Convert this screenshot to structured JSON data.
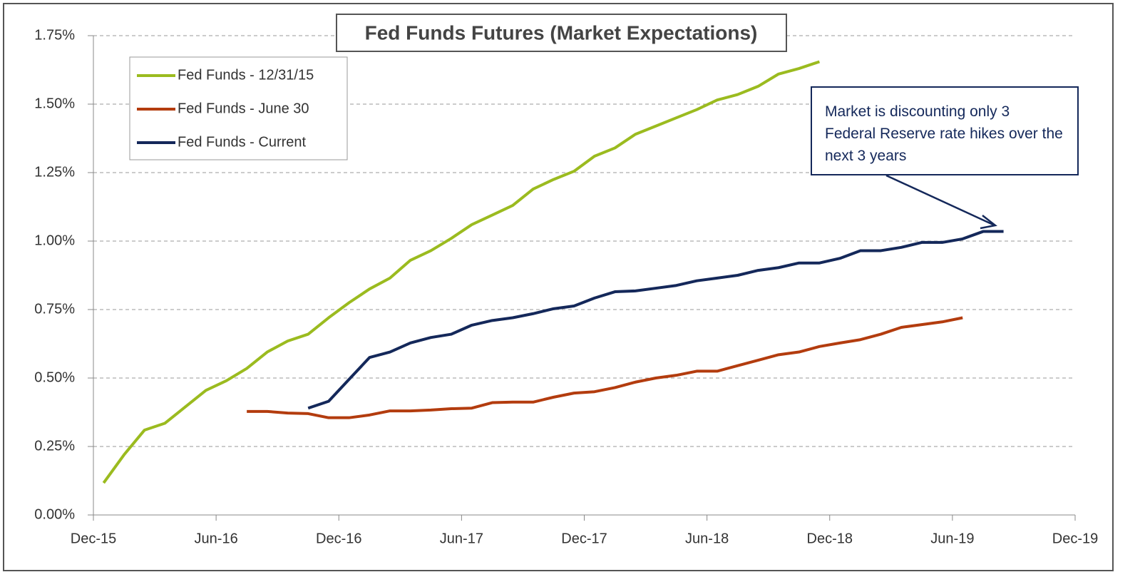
{
  "chart_data": {
    "type": "line",
    "title": "Fed Funds Futures (Market Expectations)",
    "annotation": "Market is discounting only 3 Federal Reserve rate hikes over the next 3 years",
    "xlim": [
      "Dec-15",
      "Dec-19"
    ],
    "xticks": [
      "Dec-15",
      "Jun-16",
      "Dec-16",
      "Jun-17",
      "Dec-17",
      "Jun-18",
      "Dec-18",
      "Jun-19",
      "Dec-19"
    ],
    "ylim": [
      0,
      1.75
    ],
    "yticks": [
      {
        "value": 0,
        "label": "0.00%"
      },
      {
        "value": 0.25,
        "label": "0.25%"
      },
      {
        "value": 0.5,
        "label": "0.50%"
      },
      {
        "value": 0.75,
        "label": "0.75%"
      },
      {
        "value": 1,
        "label": "1.00%"
      },
      {
        "value": 1.25,
        "label": "1.25%"
      },
      {
        "value": 1.5,
        "label": "1.50%"
      },
      {
        "value": 1.75,
        "label": "1.75%"
      }
    ],
    "grid": true,
    "legend": "upper left",
    "series": [
      {
        "name": "Fed Funds - 12/31/15",
        "color": "#9bbb1f",
        "start": "Dec-15",
        "values": [
          0.117,
          0.22,
          0.31,
          0.335,
          0.395,
          0.455,
          0.49,
          0.535,
          0.595,
          0.635,
          0.66,
          0.72,
          0.775,
          0.825,
          0.865,
          0.93,
          0.965,
          1.01,
          1.06,
          1.095,
          1.13,
          1.19,
          1.225,
          1.255,
          1.31,
          1.34,
          1.39,
          1.42,
          1.45,
          1.48,
          1.515,
          1.535,
          1.565,
          1.61,
          1.63,
          1.655
        ]
      },
      {
        "name": "Fed Funds - June 30",
        "color": "#b33c0e",
        "start": "Jul-16",
        "values": [
          0.378,
          0.378,
          0.372,
          0.37,
          0.355,
          0.355,
          0.365,
          0.38,
          0.38,
          0.383,
          0.388,
          0.39,
          0.41,
          0.412,
          0.412,
          0.43,
          0.445,
          0.45,
          0.465,
          0.485,
          0.5,
          0.51,
          0.525,
          0.525,
          0.545,
          0.565,
          0.585,
          0.595,
          0.615,
          0.628,
          0.64,
          0.66,
          0.685,
          0.695,
          0.705,
          0.72
        ]
      },
      {
        "name": "Fed Funds - Current",
        "color": "#14285a",
        "start": "Oct-16",
        "values": [
          0.39,
          0.415,
          0.495,
          0.575,
          0.595,
          0.628,
          0.648,
          0.66,
          0.693,
          0.71,
          0.72,
          0.735,
          0.753,
          0.763,
          0.792,
          0.815,
          0.818,
          0.828,
          0.838,
          0.855,
          0.865,
          0.875,
          0.893,
          0.903,
          0.92,
          0.92,
          0.937,
          0.965,
          0.965,
          0.977,
          0.995,
          0.995,
          1.008,
          1.035,
          1.035
        ]
      }
    ]
  }
}
